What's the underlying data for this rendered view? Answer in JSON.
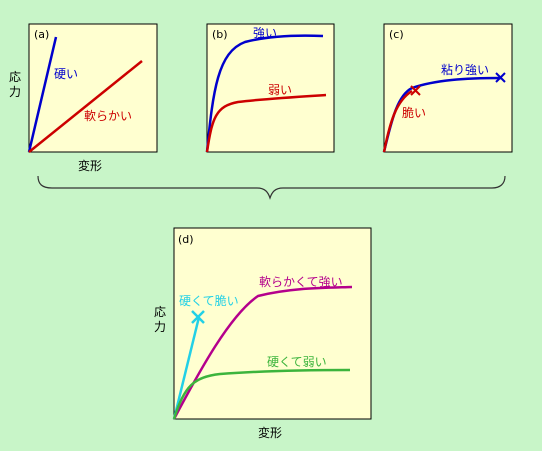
{
  "colors": {
    "background": "#c8f5c8",
    "panel_fill": "#ffffd0",
    "panel_border": "#000000",
    "blue": "#0000cc",
    "red": "#cc0000",
    "magenta": "#b4008c",
    "cyan": "#22d0e6",
    "green": "#3cb43c",
    "brace": "#333333"
  },
  "panel_a": {
    "label": "(a)",
    "ylabel": "応力",
    "xlabel": "変形",
    "curve_hard": "硬い",
    "curve_soft": "軟らかい"
  },
  "panel_b": {
    "label": "(b)",
    "curve_strong": "強い",
    "curve_weak": "弱い"
  },
  "panel_c": {
    "label": "(c)",
    "curve_tough": "粘り強い",
    "curve_brittle": "脆い"
  },
  "panel_d": {
    "label": "(d)",
    "ylabel": "応力",
    "xlabel": "変形",
    "curve_soft_strong": "軟らかくて強い",
    "curve_hard_brittle": "硬くて脆い",
    "curve_hard_weak": "硬くて弱い"
  }
}
